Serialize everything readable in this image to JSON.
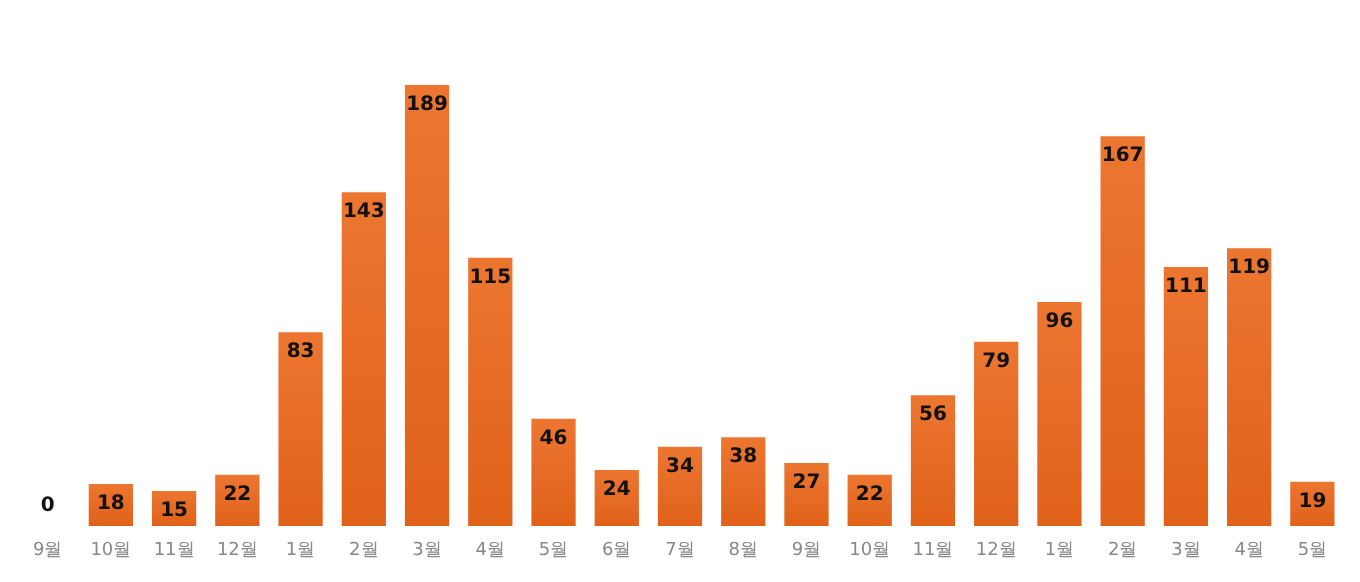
{
  "chart_data": {
    "type": "bar",
    "categories": [
      "9월",
      "10월",
      "11월",
      "12월",
      "1월",
      "2월",
      "3월",
      "4월",
      "5월",
      "6월",
      "7월",
      "8월",
      "9월",
      "10월",
      "11월",
      "12월",
      "1월",
      "2월",
      "3월",
      "4월",
      "5월"
    ],
    "values": [
      0,
      18,
      15,
      22,
      83,
      143,
      189,
      115,
      46,
      24,
      34,
      38,
      27,
      22,
      56,
      79,
      96,
      167,
      111,
      119,
      19
    ],
    "color": "#ec7630",
    "data_labels": true,
    "tick_labels": "x"
  }
}
